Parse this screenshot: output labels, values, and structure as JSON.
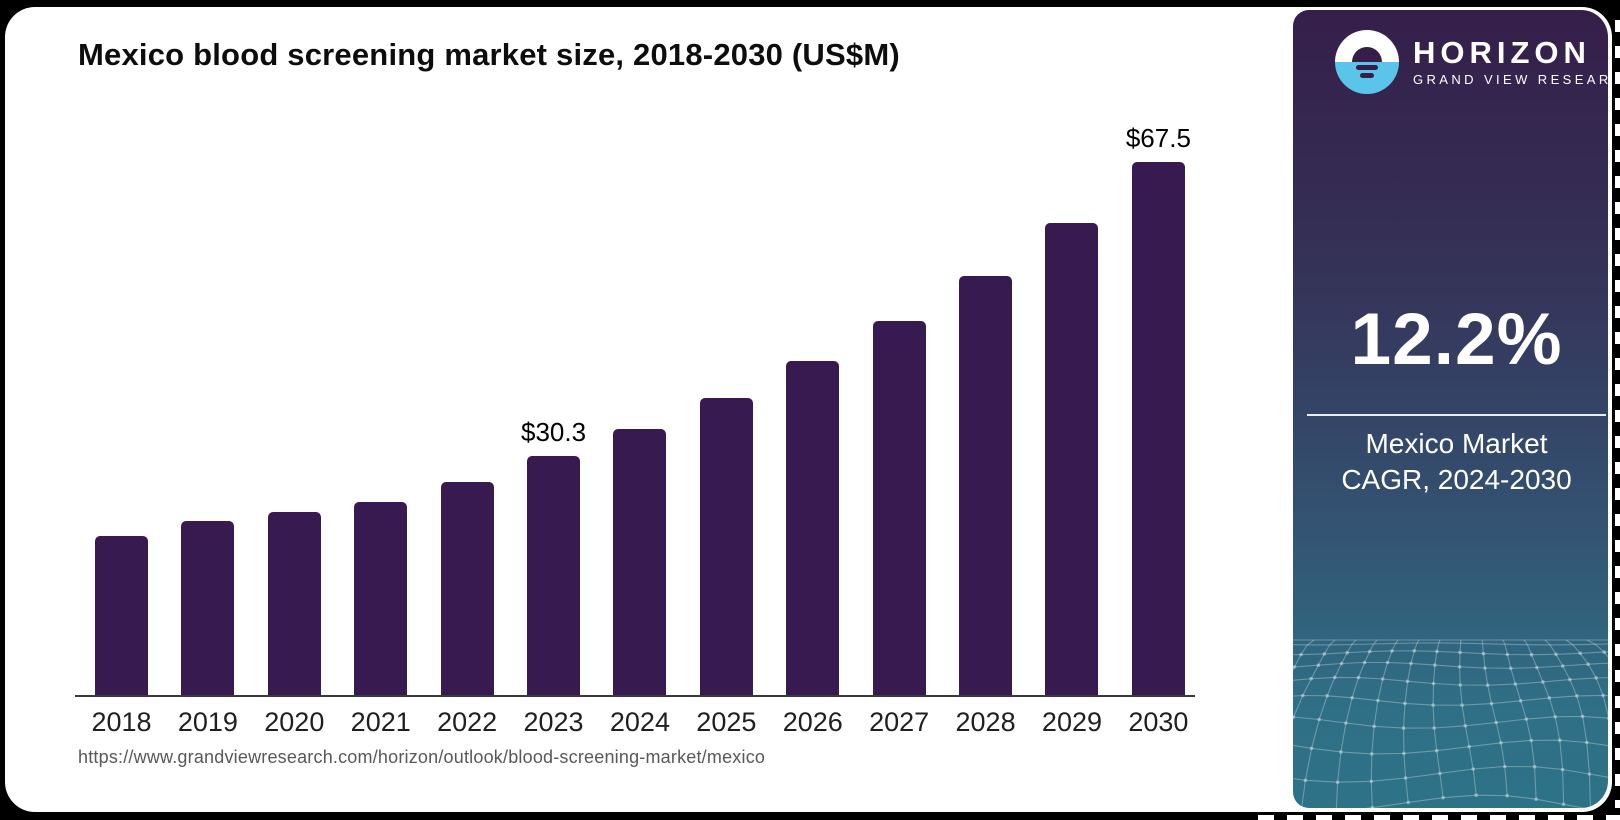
{
  "chart_data": {
    "type": "bar",
    "title": "Mexico blood screening market size, 2018-2030 (US$M)",
    "categories": [
      "2018",
      "2019",
      "2020",
      "2021",
      "2022",
      "2023",
      "2024",
      "2025",
      "2026",
      "2027",
      "2028",
      "2029",
      "2030"
    ],
    "values": [
      20.1,
      22.0,
      23.2,
      24.4,
      27.0,
      30.3,
      33.7,
      37.6,
      42.3,
      47.3,
      53.1,
      59.8,
      67.5
    ],
    "unit": "US$M",
    "xlabel": "",
    "ylabel": "",
    "ylim": [
      0,
      70
    ],
    "grid": false,
    "legend": false,
    "bar_color": "#371A4F",
    "annotations": [
      {
        "category": "2023",
        "label": "$30.3"
      },
      {
        "category": "2030",
        "label": "$67.5"
      }
    ]
  },
  "footer": {
    "source_url": "https://www.grandviewresearch.com/horizon/outlook/blood-screening-market/mexico"
  },
  "sidebar": {
    "logo": {
      "brand": "HORIZON",
      "sub_brand": "GRAND VIEW RESEARCH",
      "icon": "horizon-sun-icon",
      "logo_blue": "#5BC4E9"
    },
    "stat_value": "12.2%",
    "stat_label_line1": "Mexico Market",
    "stat_label_line2": "CAGR, 2024-2030",
    "colors": {
      "gradient_top": "#351F4A",
      "gradient_mid": "#345070",
      "gradient_bottom": "#2E7287"
    }
  }
}
